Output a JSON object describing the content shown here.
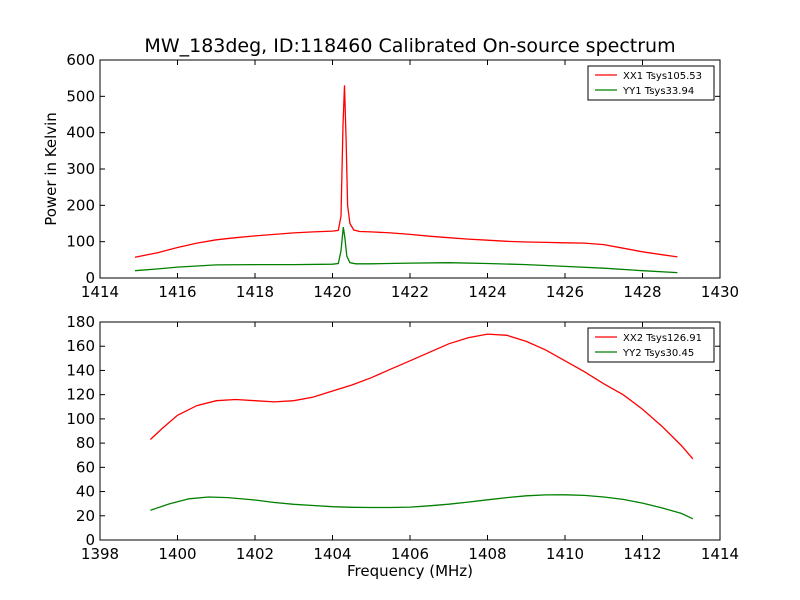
{
  "title": "MW_183deg, ID:118460 Calibrated On-source spectrum",
  "chart_data": [
    {
      "type": "line",
      "ylabel": "Power in Kelvin",
      "xlabel": "",
      "xlim": [
        1414,
        1430
      ],
      "ylim": [
        0,
        600
      ],
      "xticks": [
        "1414",
        "1416",
        "1418",
        "1420",
        "1422",
        "1424",
        "1426",
        "1428",
        "1430"
      ],
      "yticks": [
        "0",
        "100",
        "200",
        "300",
        "400",
        "500",
        "600"
      ],
      "legend_position": "top-right",
      "series": [
        {
          "name": "XX1 Tsys105.53",
          "color": "#ff0000",
          "x": [
            1414.9,
            1415.5,
            1416.0,
            1416.5,
            1417.0,
            1417.5,
            1418.0,
            1418.5,
            1419.0,
            1419.5,
            1420.0,
            1420.15,
            1420.22,
            1420.27,
            1420.31,
            1420.35,
            1420.39,
            1420.45,
            1420.55,
            1420.7,
            1421.0,
            1421.5,
            1422.0,
            1422.5,
            1423.0,
            1423.5,
            1424.0,
            1424.5,
            1425.0,
            1425.5,
            1426.0,
            1426.5,
            1427.0,
            1427.5,
            1428.0,
            1428.5,
            1428.9
          ],
          "y": [
            57,
            70,
            84,
            96,
            105,
            111,
            116,
            120,
            124,
            127,
            129,
            131,
            170,
            420,
            530,
            380,
            200,
            150,
            132,
            128,
            127,
            124,
            120,
            115,
            111,
            107,
            104,
            101,
            99,
            98,
            97,
            96,
            92,
            82,
            72,
            64,
            58
          ]
        },
        {
          "name": "YY1 Tsys33.94",
          "color": "#008000",
          "x": [
            1414.9,
            1415.5,
            1416.0,
            1416.5,
            1417.0,
            1418.0,
            1419.0,
            1420.0,
            1420.15,
            1420.22,
            1420.28,
            1420.32,
            1420.37,
            1420.45,
            1420.6,
            1421.0,
            1422.0,
            1423.0,
            1424.0,
            1425.0,
            1426.0,
            1427.0,
            1428.0,
            1428.9
          ],
          "y": [
            20,
            25,
            30,
            33,
            36,
            37,
            37,
            38,
            40,
            75,
            140,
            110,
            60,
            42,
            39,
            39,
            41,
            42,
            40,
            37,
            32,
            27,
            20,
            15
          ]
        }
      ]
    },
    {
      "type": "line",
      "ylabel": "",
      "xlabel": "Frequency (MHz)",
      "xlim": [
        1398,
        1414
      ],
      "ylim": [
        0,
        180
      ],
      "xticks": [
        "1398",
        "1400",
        "1402",
        "1404",
        "1406",
        "1408",
        "1410",
        "1412",
        "1414"
      ],
      "yticks": [
        "0",
        "20",
        "40",
        "60",
        "80",
        "100",
        "120",
        "140",
        "160",
        "180"
      ],
      "legend_position": "top-right",
      "series": [
        {
          "name": "XX2 Tsys126.91",
          "color": "#ff0000",
          "x": [
            1399.3,
            1399.6,
            1400.0,
            1400.5,
            1401.0,
            1401.5,
            1402.0,
            1402.5,
            1403.0,
            1403.5,
            1404.0,
            1404.5,
            1405.0,
            1405.5,
            1406.0,
            1406.5,
            1407.0,
            1407.5,
            1408.0,
            1408.5,
            1409.0,
            1409.5,
            1410.0,
            1410.5,
            1411.0,
            1411.5,
            1412.0,
            1412.5,
            1413.0,
            1413.3
          ],
          "y": [
            83,
            92,
            103,
            111,
            115,
            116,
            115,
            114,
            115,
            118,
            123,
            128,
            134,
            141,
            148,
            155,
            162,
            167,
            170,
            169,
            164,
            157,
            148,
            139,
            129,
            120,
            108,
            94,
            78,
            67
          ]
        },
        {
          "name": "YY2 Tsys30.45",
          "color": "#008000",
          "x": [
            1399.3,
            1399.8,
            1400.3,
            1400.8,
            1401.3,
            1402.0,
            1402.5,
            1403.0,
            1403.5,
            1404.0,
            1404.5,
            1405.0,
            1405.5,
            1406.0,
            1406.5,
            1407.0,
            1407.5,
            1408.0,
            1408.5,
            1409.0,
            1409.5,
            1410.0,
            1410.5,
            1411.0,
            1411.5,
            1412.0,
            1412.5,
            1413.0,
            1413.3
          ],
          "y": [
            24.5,
            30,
            34,
            35.5,
            35,
            33,
            31,
            29.5,
            28.5,
            27.5,
            27,
            26.8,
            26.8,
            27.2,
            28.2,
            29.6,
            31.3,
            33.2,
            35,
            36.5,
            37.2,
            37.3,
            36.8,
            35.5,
            33.5,
            30.5,
            26.5,
            22,
            17.5
          ]
        }
      ]
    }
  ]
}
